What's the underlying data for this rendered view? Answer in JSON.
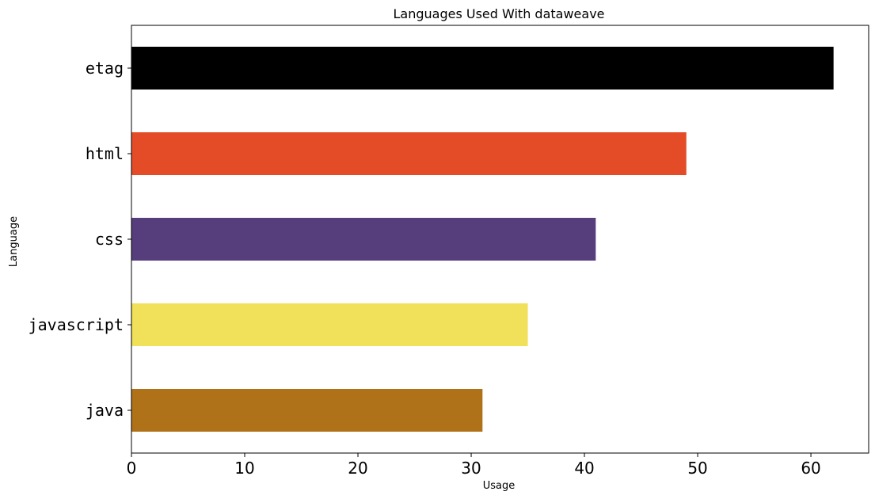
{
  "chart_data": {
    "type": "bar",
    "orientation": "horizontal",
    "title": "Languages Used With dataweave",
    "xlabel": "Usage",
    "ylabel": "Language",
    "categories": [
      "etag",
      "html",
      "css",
      "javascript",
      "java"
    ],
    "values": [
      62,
      49,
      41,
      35,
      31
    ],
    "colors": [
      "#000000",
      "#e34c26",
      "#563d7c",
      "#f1e05a",
      "#b07219"
    ],
    "xlim": [
      0,
      65.1
    ],
    "xticks": [
      "0",
      "10",
      "20",
      "30",
      "40",
      "50",
      "60"
    ],
    "grid": false,
    "legend": "none"
  }
}
